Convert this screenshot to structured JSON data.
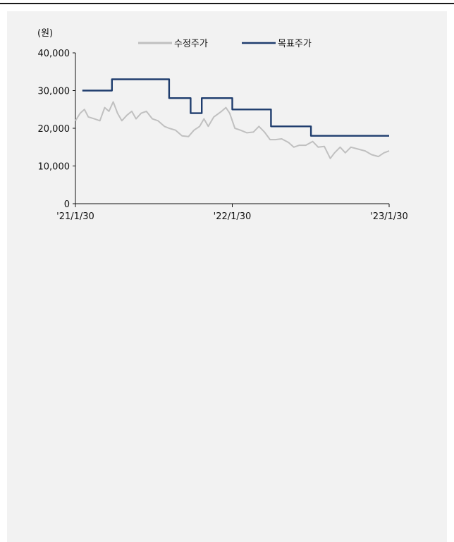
{
  "chart_data": {
    "type": "line",
    "ylabel": "(원)",
    "ylim": [
      0,
      40000
    ],
    "yticks": [
      "40,000",
      "30,000",
      "20,000",
      "10,000",
      "0"
    ],
    "ytick_values": [
      40000,
      30000,
      20000,
      10000,
      0
    ],
    "xticks": [
      "'21/1/30",
      "'22/1/30",
      "'23/1/30"
    ],
    "xtick_values": [
      "2021-01-30",
      "2022-01-30",
      "2023-01-30"
    ],
    "xlim": [
      "2021-01-30",
      "2023-01-30"
    ],
    "legend_position": "top",
    "series": [
      {
        "name": "수정주가",
        "color": "#c0c0c0",
        "step": false,
        "points": [
          [
            "2021-01-30",
            22000
          ],
          [
            "2021-02-10",
            24000
          ],
          [
            "2021-02-20",
            25000
          ],
          [
            "2021-03-01",
            23000
          ],
          [
            "2021-03-15",
            22500
          ],
          [
            "2021-03-28",
            22000
          ],
          [
            "2021-04-08",
            25500
          ],
          [
            "2021-04-18",
            24500
          ],
          [
            "2021-04-28",
            27000
          ],
          [
            "2021-05-08",
            24000
          ],
          [
            "2021-05-18",
            22000
          ],
          [
            "2021-05-30",
            23500
          ],
          [
            "2021-06-10",
            24500
          ],
          [
            "2021-06-20",
            22500
          ],
          [
            "2021-07-02",
            24000
          ],
          [
            "2021-07-14",
            24500
          ],
          [
            "2021-07-28",
            22500
          ],
          [
            "2021-08-10",
            22000
          ],
          [
            "2021-08-25",
            20500
          ],
          [
            "2021-09-05",
            20000
          ],
          [
            "2021-09-20",
            19500
          ],
          [
            "2021-10-05",
            18000
          ],
          [
            "2021-10-20",
            17800
          ],
          [
            "2021-11-02",
            19500
          ],
          [
            "2021-11-15",
            20500
          ],
          [
            "2021-11-25",
            22500
          ],
          [
            "2021-12-05",
            20500
          ],
          [
            "2021-12-18",
            23000
          ],
          [
            "2022-01-05",
            24500
          ],
          [
            "2022-01-15",
            25500
          ],
          [
            "2022-01-24",
            24000
          ],
          [
            "2022-02-05",
            20000
          ],
          [
            "2022-02-18",
            19500
          ],
          [
            "2022-03-05",
            18800
          ],
          [
            "2022-03-20",
            19000
          ],
          [
            "2022-04-02",
            20500
          ],
          [
            "2022-04-15",
            19000
          ],
          [
            "2022-04-28",
            17000
          ],
          [
            "2022-05-10",
            17000
          ],
          [
            "2022-05-25",
            17200
          ],
          [
            "2022-06-10",
            16200
          ],
          [
            "2022-06-22",
            15000
          ],
          [
            "2022-07-05",
            15500
          ],
          [
            "2022-07-20",
            15500
          ],
          [
            "2022-08-05",
            16500
          ],
          [
            "2022-08-18",
            15000
          ],
          [
            "2022-09-01",
            15200
          ],
          [
            "2022-09-15",
            12000
          ],
          [
            "2022-09-25",
            13500
          ],
          [
            "2022-10-08",
            15000
          ],
          [
            "2022-10-20",
            13500
          ],
          [
            "2022-11-02",
            15000
          ],
          [
            "2022-11-18",
            14500
          ],
          [
            "2022-12-05",
            14000
          ],
          [
            "2022-12-20",
            13000
          ],
          [
            "2023-01-05",
            12500
          ],
          [
            "2023-01-18",
            13500
          ],
          [
            "2023-01-30",
            14000
          ]
        ]
      },
      {
        "name": "목표주가",
        "color": "#1f3d6e",
        "step": true,
        "points": [
          [
            "2021-02-15",
            30000
          ],
          [
            "2021-04-25",
            33000
          ],
          [
            "2021-09-05",
            28000
          ],
          [
            "2021-10-25",
            24000
          ],
          [
            "2021-11-20",
            28000
          ],
          [
            "2022-01-30",
            25000
          ],
          [
            "2022-04-30",
            20500
          ],
          [
            "2022-08-01",
            18000
          ],
          [
            "2023-01-30",
            18000
          ]
        ]
      }
    ]
  }
}
